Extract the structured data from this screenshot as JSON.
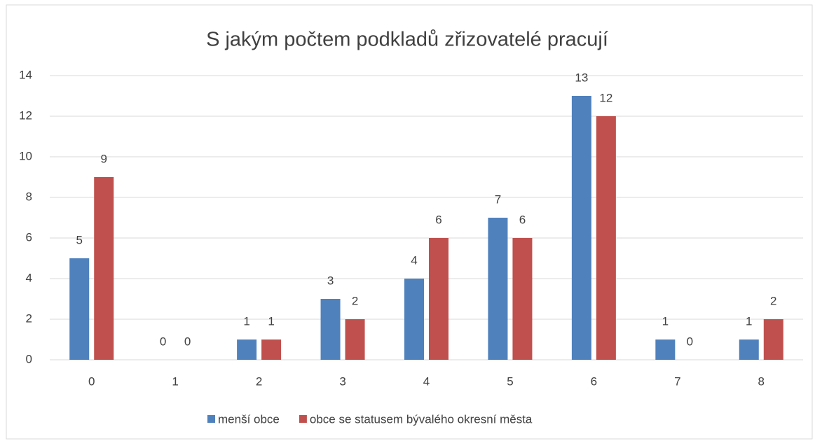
{
  "chart_data": {
    "type": "bar",
    "title": "S jakým počtem podkladů zřizovatelé pracují",
    "categories": [
      "0",
      "1",
      "2",
      "3",
      "4",
      "5",
      "6",
      "7",
      "8"
    ],
    "series": [
      {
        "name": "menší obce",
        "color": "#4f81bd",
        "values": [
          5,
          0,
          1,
          3,
          4,
          7,
          13,
          1,
          1
        ]
      },
      {
        "name": "obce se statusem bývalého okresní města",
        "color": "#c0504d",
        "values": [
          9,
          0,
          1,
          2,
          6,
          6,
          12,
          0,
          2
        ]
      }
    ],
    "ylim": [
      0,
      14
    ],
    "yticks": [
      0,
      2,
      4,
      6,
      8,
      10,
      12,
      14
    ],
    "grid": true,
    "legend": "bottom"
  }
}
